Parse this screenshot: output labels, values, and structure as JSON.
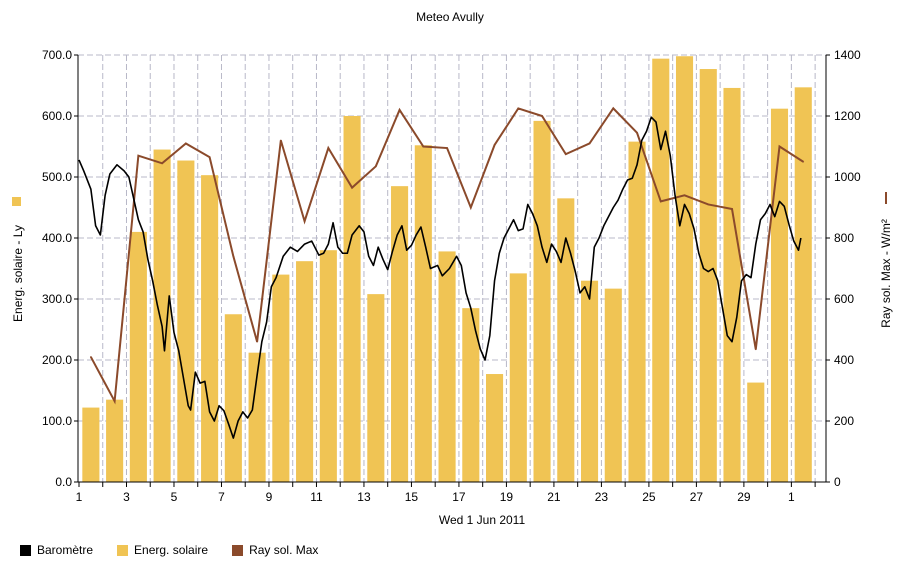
{
  "chart_data": {
    "type": "bar",
    "title": "Meteo  Avully",
    "xlabel": "Wed 1 Jun 2011",
    "x_ticks": [
      "1",
      "3",
      "5",
      "7",
      "9",
      "11",
      "13",
      "15",
      "17",
      "19",
      "21",
      "23",
      "25",
      "27",
      "29",
      "1"
    ],
    "ylabel_left": "Energ. solaire - Ly",
    "ylabel_right": "Ray sol. Max - W/m²",
    "ylim_left": [
      0,
      700
    ],
    "ylim_right": [
      0,
      1400
    ],
    "yticks_left": [
      "0.0",
      "100.0",
      "200.0",
      "300.0",
      "400.0",
      "500.0",
      "600.0",
      "700.0"
    ],
    "yticks_right": [
      "0",
      "200",
      "400",
      "600",
      "800",
      "1000",
      "1200",
      "1400"
    ],
    "days": [
      1,
      2,
      3,
      4,
      5,
      6,
      7,
      8,
      9,
      10,
      11,
      12,
      13,
      14,
      15,
      16,
      17,
      18,
      19,
      20,
      21,
      22,
      23,
      24,
      25,
      26,
      27,
      28,
      29,
      30,
      31,
      32
    ],
    "grid": true,
    "legend_position": "bottom",
    "colors": {
      "bar": "#f0c454",
      "line": "#8b4a2b",
      "baro": "#000000",
      "grid": "#b8b8c8"
    },
    "series": [
      {
        "name": "Energ. solaire",
        "type": "bar",
        "axis": "left",
        "values": [
          122,
          135,
          410,
          545,
          527,
          503,
          275,
          212,
          340,
          362,
          380,
          600,
          308,
          485,
          552,
          378,
          285,
          177,
          342,
          592,
          465,
          330,
          317,
          558,
          694,
          698,
          677,
          646,
          163,
          612,
          647
        ]
      },
      {
        "name": "Ray sol. Max",
        "type": "line",
        "axis": "right",
        "values": [
          410,
          265,
          1070,
          1045,
          1110,
          1065,
          740,
          460,
          1120,
          855,
          1095,
          965,
          1035,
          1220,
          1100,
          1095,
          900,
          1105,
          1225,
          1200,
          1075,
          1110,
          1225,
          1145,
          920,
          940,
          910,
          895,
          435,
          1100,
          1050
        ]
      },
      {
        "name": "Baromètre",
        "type": "line",
        "axis": "left",
        "points": [
          [
            1,
            528
          ],
          [
            1.2,
            510
          ],
          [
            1.5,
            480
          ],
          [
            1.7,
            420
          ],
          [
            1.9,
            405
          ],
          [
            2.1,
            470
          ],
          [
            2.3,
            505
          ],
          [
            2.6,
            520
          ],
          [
            2.9,
            510
          ],
          [
            3.1,
            500
          ],
          [
            3.3,
            465
          ],
          [
            3.5,
            430
          ],
          [
            3.7,
            410
          ],
          [
            3.9,
            365
          ],
          [
            4.1,
            330
          ],
          [
            4.3,
            290
          ],
          [
            4.5,
            255
          ],
          [
            4.6,
            215
          ],
          [
            4.8,
            305
          ],
          [
            5.0,
            245
          ],
          [
            5.2,
            215
          ],
          [
            5.4,
            170
          ],
          [
            5.6,
            125
          ],
          [
            5.7,
            118
          ],
          [
            5.9,
            180
          ],
          [
            6.1,
            162
          ],
          [
            6.3,
            165
          ],
          [
            6.5,
            115
          ],
          [
            6.7,
            100
          ],
          [
            6.9,
            125
          ],
          [
            7.1,
            117
          ],
          [
            7.3,
            95
          ],
          [
            7.5,
            72
          ],
          [
            7.7,
            100
          ],
          [
            7.9,
            115
          ],
          [
            8.1,
            105
          ],
          [
            8.3,
            118
          ],
          [
            8.5,
            175
          ],
          [
            8.7,
            230
          ],
          [
            8.9,
            262
          ],
          [
            9.1,
            320
          ],
          [
            9.3,
            335
          ],
          [
            9.6,
            370
          ],
          [
            9.9,
            385
          ],
          [
            10.2,
            378
          ],
          [
            10.5,
            390
          ],
          [
            10.8,
            395
          ],
          [
            11.1,
            372
          ],
          [
            11.3,
            375
          ],
          [
            11.5,
            390
          ],
          [
            11.7,
            425
          ],
          [
            11.9,
            385
          ],
          [
            12.1,
            375
          ],
          [
            12.3,
            375
          ],
          [
            12.5,
            405
          ],
          [
            12.8,
            420
          ],
          [
            13.0,
            410
          ],
          [
            13.2,
            370
          ],
          [
            13.4,
            355
          ],
          [
            13.6,
            385
          ],
          [
            13.8,
            365
          ],
          [
            14.0,
            348
          ],
          [
            14.2,
            378
          ],
          [
            14.4,
            405
          ],
          [
            14.6,
            420
          ],
          [
            14.8,
            380
          ],
          [
            15.0,
            388
          ],
          [
            15.2,
            405
          ],
          [
            15.4,
            418
          ],
          [
            15.6,
            385
          ],
          [
            15.8,
            350
          ],
          [
            16.1,
            355
          ],
          [
            16.3,
            338
          ],
          [
            16.6,
            350
          ],
          [
            16.9,
            370
          ],
          [
            17.1,
            355
          ],
          [
            17.3,
            310
          ],
          [
            17.5,
            285
          ],
          [
            17.7,
            248
          ],
          [
            17.9,
            218
          ],
          [
            18.1,
            200
          ],
          [
            18.3,
            240
          ],
          [
            18.5,
            330
          ],
          [
            18.7,
            375
          ],
          [
            18.9,
            400
          ],
          [
            19.1,
            415
          ],
          [
            19.3,
            430
          ],
          [
            19.5,
            412
          ],
          [
            19.7,
            415
          ],
          [
            19.9,
            455
          ],
          [
            20.1,
            440
          ],
          [
            20.3,
            420
          ],
          [
            20.5,
            385
          ],
          [
            20.7,
            360
          ],
          [
            20.9,
            390
          ],
          [
            21.1,
            378
          ],
          [
            21.3,
            360
          ],
          [
            21.5,
            400
          ],
          [
            21.7,
            375
          ],
          [
            21.9,
            345
          ],
          [
            22.1,
            310
          ],
          [
            22.3,
            320
          ],
          [
            22.5,
            300
          ],
          [
            22.7,
            385
          ],
          [
            22.9,
            400
          ],
          [
            23.1,
            420
          ],
          [
            23.3,
            435
          ],
          [
            23.5,
            450
          ],
          [
            23.7,
            462
          ],
          [
            23.9,
            480
          ],
          [
            24.1,
            495
          ],
          [
            24.3,
            498
          ],
          [
            24.5,
            520
          ],
          [
            24.7,
            560
          ],
          [
            24.9,
            575
          ],
          [
            25.1,
            598
          ],
          [
            25.3,
            590
          ],
          [
            25.5,
            545
          ],
          [
            25.7,
            575
          ],
          [
            25.9,
            535
          ],
          [
            26.1,
            470
          ],
          [
            26.3,
            420
          ],
          [
            26.5,
            455
          ],
          [
            26.7,
            440
          ],
          [
            26.9,
            415
          ],
          [
            27.1,
            375
          ],
          [
            27.3,
            350
          ],
          [
            27.5,
            345
          ],
          [
            27.7,
            350
          ],
          [
            27.9,
            330
          ],
          [
            28.1,
            285
          ],
          [
            28.3,
            240
          ],
          [
            28.5,
            230
          ],
          [
            28.7,
            270
          ],
          [
            28.9,
            330
          ],
          [
            29.1,
            340
          ],
          [
            29.3,
            335
          ],
          [
            29.5,
            390
          ],
          [
            29.7,
            430
          ],
          [
            29.9,
            440
          ],
          [
            30.1,
            455
          ],
          [
            30.3,
            435
          ],
          [
            30.5,
            460
          ],
          [
            30.7,
            452
          ],
          [
            30.9,
            422
          ],
          [
            31.1,
            395
          ],
          [
            31.3,
            380
          ],
          [
            31.4,
            400
          ]
        ]
      }
    ]
  }
}
